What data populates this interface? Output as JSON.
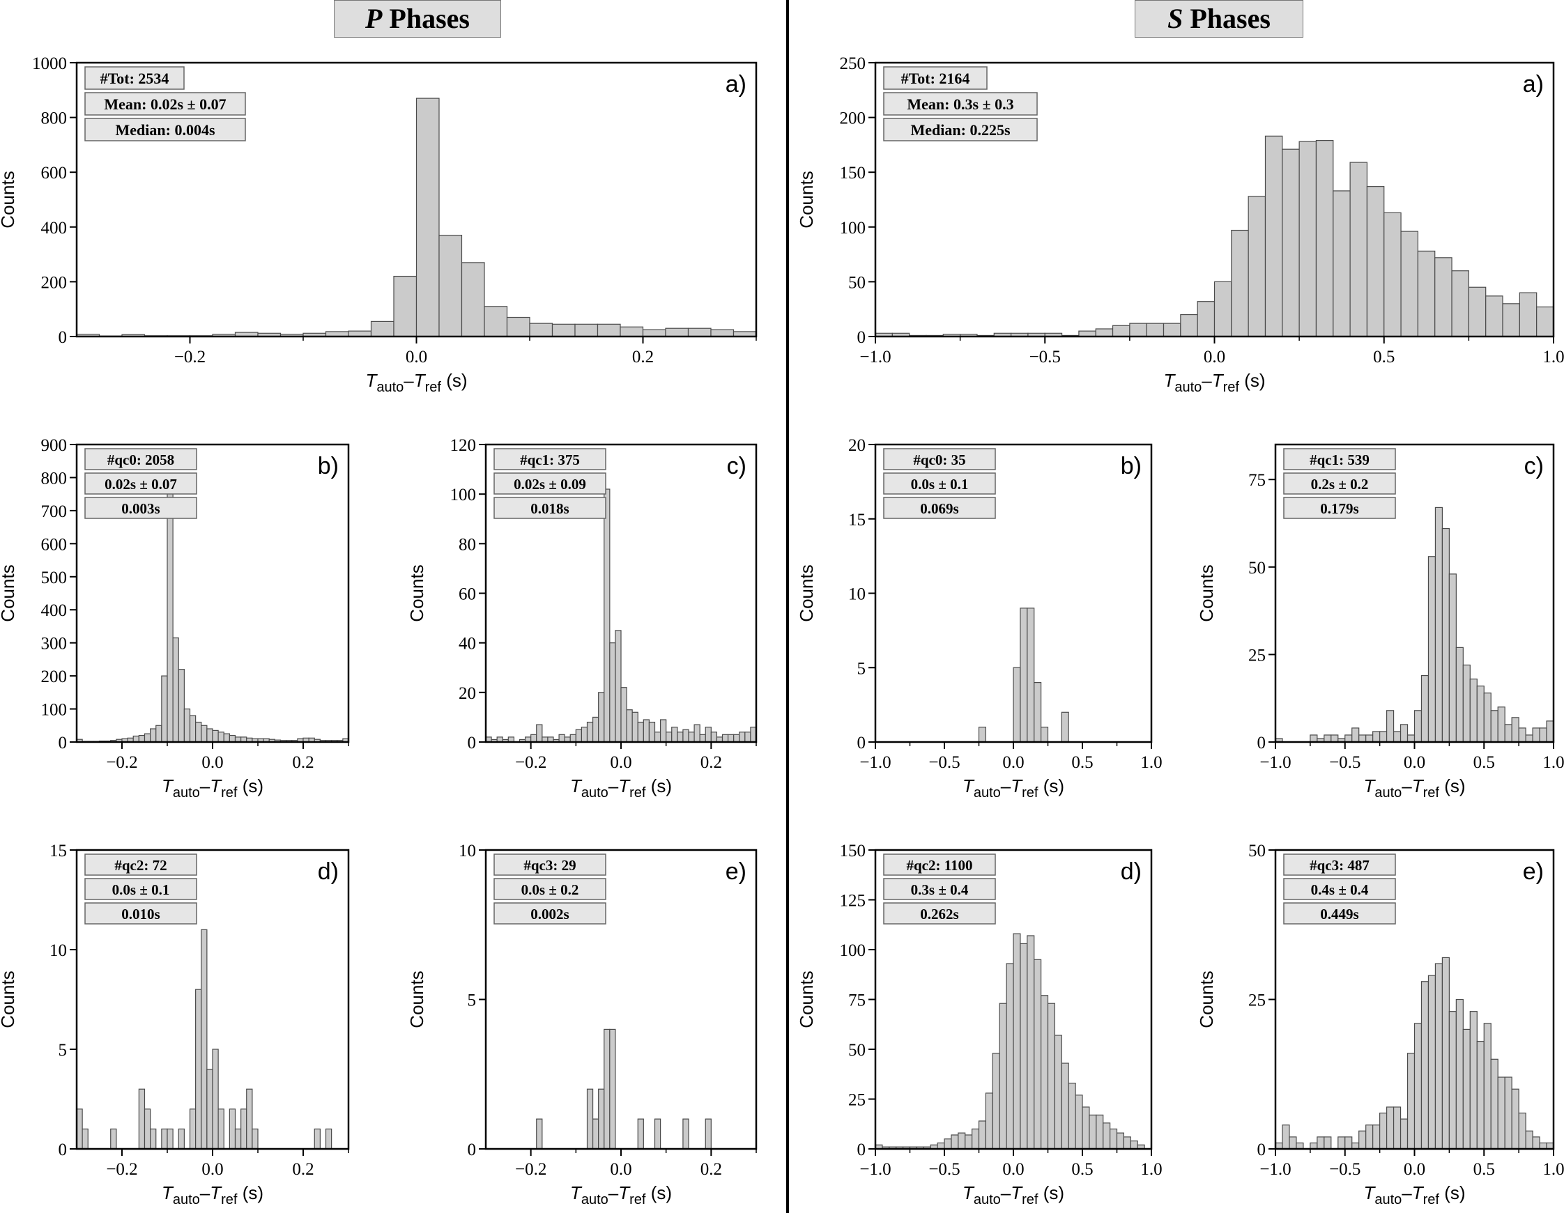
{
  "headers": {
    "p": {
      "symbol": "P",
      "word": "Phases"
    },
    "s": {
      "symbol": "S",
      "word": "Phases"
    }
  },
  "axis_text": {
    "ylabel": "Counts",
    "xlabel_t1": "T",
    "xlabel_sub1": "auto",
    "xlabel_dash": "–",
    "xlabel_t2": "T",
    "xlabel_sub2": "ref",
    "xlabel_unit": " (s)"
  },
  "chart_data": [
    {
      "type": "bar",
      "side": "P",
      "panel_label": "a)",
      "title": "",
      "xlim": [
        -0.3,
        0.3
      ],
      "ylim": [
        0,
        1000
      ],
      "xticks": [
        -0.2,
        0,
        0.2
      ],
      "xtick_labels": [
        "−0.2",
        "0.0",
        "0.2"
      ],
      "yticks": [
        0,
        200,
        400,
        600,
        800,
        1000
      ],
      "stats": [
        "#Tot: 2534",
        "Mean: 0.02s ± 0.07",
        "Median: 0.004s"
      ],
      "bin_start": -0.3,
      "bin_width": 0.02,
      "values": [
        8,
        2,
        7,
        3,
        3,
        3,
        8,
        15,
        12,
        8,
        12,
        18,
        20,
        55,
        220,
        870,
        370,
        270,
        110,
        70,
        48,
        45,
        45,
        45,
        35,
        25,
        30,
        30,
        25,
        18
      ]
    },
    {
      "type": "bar",
      "side": "P",
      "panel_label": "b)",
      "title": "",
      "xlim": [
        -0.3,
        0.3
      ],
      "ylim": [
        0,
        900
      ],
      "xticks": [
        -0.2,
        0,
        0.2
      ],
      "xtick_labels": [
        "−0.2",
        "0.0",
        "0.2"
      ],
      "yticks": [
        0,
        100,
        200,
        300,
        400,
        500,
        600,
        700,
        800,
        900
      ],
      "stats": [
        "#qc0: 2058",
        "0.02s ± 0.07",
        "0.003s"
      ],
      "bin_start": -0.3,
      "bin_width": 0.0125,
      "values": [
        8,
        2,
        2,
        2,
        3,
        3,
        5,
        8,
        10,
        12,
        18,
        20,
        25,
        40,
        50,
        200,
        760,
        315,
        220,
        100,
        80,
        60,
        50,
        40,
        35,
        30,
        25,
        20,
        15,
        15,
        12,
        10,
        10,
        10,
        8,
        6,
        5,
        5,
        5,
        10,
        12,
        12,
        8,
        5,
        5,
        5,
        5,
        10
      ]
    },
    {
      "type": "bar",
      "side": "P",
      "panel_label": "c)",
      "title": "",
      "xlim": [
        -0.3,
        0.3
      ],
      "ylim": [
        0,
        120
      ],
      "xticks": [
        -0.2,
        0,
        0.2
      ],
      "xtick_labels": [
        "−0.2",
        "0.0",
        "0.2"
      ],
      "yticks": [
        0,
        20,
        40,
        60,
        80,
        100,
        120
      ],
      "stats": [
        "#qc1: 375",
        "0.02s ± 0.09",
        "0.018s"
      ],
      "bin_start": -0.3,
      "bin_width": 0.0125,
      "values": [
        2,
        1,
        2,
        1,
        2,
        0,
        1,
        2,
        3,
        7,
        2,
        2,
        1,
        3,
        2,
        3,
        5,
        6,
        8,
        10,
        20,
        102,
        40,
        45,
        22,
        13,
        12,
        8,
        9,
        8,
        4,
        9,
        4,
        6,
        4,
        5,
        4,
        7,
        3,
        6,
        4,
        2,
        3,
        3,
        3,
        4,
        4,
        6
      ]
    },
    {
      "type": "bar",
      "side": "P",
      "panel_label": "d)",
      "title": "",
      "xlim": [
        -0.3,
        0.3
      ],
      "ylim": [
        0,
        15
      ],
      "xticks": [
        -0.2,
        0,
        0.2
      ],
      "xtick_labels": [
        "−0.2",
        "0.0",
        "0.2"
      ],
      "yticks": [
        0,
        5,
        10,
        15
      ],
      "stats": [
        "#qc2: 72",
        "0.0s ± 0.1",
        "0.010s"
      ],
      "bin_start": -0.3,
      "bin_width": 0.0125,
      "values": [
        2,
        1,
        0,
        0,
        0,
        0,
        1,
        0,
        0,
        0,
        0,
        3,
        2,
        1,
        0,
        1,
        1,
        0,
        1,
        0,
        2,
        8,
        11,
        4,
        5,
        2,
        0,
        2,
        1,
        2,
        3,
        1,
        0,
        0,
        0,
        0,
        0,
        0,
        0,
        0,
        0,
        0,
        1,
        0,
        1,
        0,
        0,
        0
      ]
    },
    {
      "type": "bar",
      "side": "P",
      "panel_label": "e)",
      "title": "",
      "xlim": [
        -0.3,
        0.3
      ],
      "ylim": [
        0,
        10
      ],
      "xticks": [
        -0.2,
        0,
        0.2
      ],
      "xtick_labels": [
        "−0.2",
        "0.0",
        "0.2"
      ],
      "yticks": [
        0,
        5,
        10
      ],
      "stats": [
        "#qc3: 29",
        "0.0s ± 0.2",
        "0.002s"
      ],
      "bin_start": -0.3,
      "bin_width": 0.0125,
      "values": [
        0,
        0,
        0,
        0,
        0,
        0,
        0,
        0,
        0,
        1,
        0,
        0,
        0,
        0,
        0,
        0,
        0,
        0,
        2,
        1,
        2,
        4,
        4,
        0,
        0,
        0,
        0,
        1,
        0,
        0,
        1,
        0,
        0,
        0,
        0,
        1,
        0,
        0,
        0,
        1,
        0,
        0,
        0,
        0,
        0,
        0,
        0,
        0
      ]
    },
    {
      "type": "bar",
      "side": "S",
      "panel_label": "a)",
      "title": "",
      "xlim": [
        -1,
        1
      ],
      "ylim": [
        0,
        250
      ],
      "xticks": [
        -1,
        -0.5,
        0,
        0.5,
        1
      ],
      "xtick_labels": [
        "−1.0",
        "−0.5",
        "0.0",
        "0.5",
        "1.0"
      ],
      "yticks": [
        0,
        50,
        100,
        150,
        200,
        250
      ],
      "stats": [
        "#Tot: 2164",
        "Mean: 0.3s ± 0.3",
        "Median: 0.225s"
      ],
      "bin_start": -1,
      "bin_width": 0.05,
      "values": [
        3,
        3,
        1,
        1,
        2,
        2,
        1,
        3,
        3,
        3,
        3,
        1,
        5,
        7,
        10,
        12,
        12,
        12,
        20,
        32,
        50,
        97,
        128,
        183,
        171,
        178,
        179,
        133,
        159,
        137,
        113,
        96,
        78,
        72,
        60,
        45,
        37,
        30,
        40,
        27,
        20,
        16,
        16
      ]
    },
    {
      "type": "bar",
      "side": "S",
      "panel_label": "b)",
      "title": "",
      "xlim": [
        -1,
        1
      ],
      "ylim": [
        0,
        20
      ],
      "xticks": [
        -1,
        -0.5,
        0,
        0.5,
        1
      ],
      "xtick_labels": [
        "−1.0",
        "−0.5",
        "0.0",
        "0.5",
        "1.0"
      ],
      "yticks": [
        0,
        5,
        10,
        15,
        20
      ],
      "stats": [
        "#qc0: 35",
        "0.0s ± 0.1",
        "0.069s"
      ],
      "bin_start": -1,
      "bin_width": 0.05,
      "values": [
        0,
        0,
        0,
        0,
        0,
        0,
        0,
        0,
        0,
        0,
        0,
        0,
        0,
        0,
        0,
        1,
        0,
        0,
        0,
        0,
        5,
        9,
        9,
        4,
        1,
        0,
        0,
        2,
        0,
        0,
        0,
        0,
        0,
        0,
        0,
        0,
        0,
        0,
        0,
        0
      ]
    },
    {
      "type": "bar",
      "side": "S",
      "panel_label": "c)",
      "title": "",
      "xlim": [
        -1,
        1
      ],
      "ylim": [
        0,
        85
      ],
      "xticks": [
        -1,
        -0.5,
        0,
        0.5,
        1
      ],
      "xtick_labels": [
        "−1.0",
        "−0.5",
        "0.0",
        "0.5",
        "1.0"
      ],
      "yticks": [
        0,
        25,
        50,
        75
      ],
      "stats": [
        "#qc1: 539",
        "0.2s ± 0.2",
        "0.179s"
      ],
      "bin_start": -1,
      "bin_width": 0.05,
      "values": [
        1,
        0,
        0,
        0,
        0,
        2,
        1,
        2,
        2,
        1,
        2,
        4,
        2,
        2,
        3,
        3,
        9,
        3,
        5,
        2,
        9,
        19,
        53,
        67,
        61,
        48,
        27,
        22,
        18,
        16,
        14,
        9,
        10,
        5,
        7,
        4,
        2,
        4,
        4,
        6
      ]
    },
    {
      "type": "bar",
      "side": "S",
      "panel_label": "d)",
      "title": "",
      "xlim": [
        -1,
        1
      ],
      "ylim": [
        0,
        150
      ],
      "xticks": [
        -1,
        -0.5,
        0,
        0.5,
        1
      ],
      "xtick_labels": [
        "−1.0",
        "−0.5",
        "0.0",
        "0.5",
        "1.0"
      ],
      "yticks": [
        0,
        25,
        50,
        75,
        100,
        125,
        150
      ],
      "stats": [
        "#qc2: 1100",
        "0.3s ± 0.4",
        "0.262s"
      ],
      "bin_start": -1,
      "bin_width": 0.05,
      "values": [
        2,
        1,
        1,
        1,
        1,
        1,
        1,
        1,
        2,
        3,
        5,
        7,
        8,
        7,
        10,
        14,
        28,
        48,
        73,
        93,
        108,
        103,
        107,
        95,
        77,
        73,
        57,
        43,
        33,
        27,
        21,
        17,
        17,
        13,
        10,
        8,
        6,
        4,
        2,
        0
      ]
    },
    {
      "type": "bar",
      "side": "S",
      "panel_label": "e)",
      "title": "",
      "xlim": [
        -1,
        1
      ],
      "ylim": [
        0,
        50
      ],
      "xticks": [
        -1,
        -0.5,
        0,
        0.5,
        1
      ],
      "xtick_labels": [
        "−1.0",
        "−0.5",
        "0.0",
        "0.5",
        "1.0"
      ],
      "yticks": [
        0,
        25,
        50
      ],
      "stats": [
        "#qc3: 487",
        "0.4s ± 0.4",
        "0.449s"
      ],
      "bin_start": -1,
      "bin_width": 0.05,
      "values": [
        1,
        4,
        2,
        1,
        0,
        1,
        2,
        2,
        0,
        2,
        2,
        1,
        3,
        4,
        4,
        6,
        7,
        7,
        5,
        16,
        21,
        28,
        29,
        31,
        32,
        23,
        25,
        20,
        23,
        18,
        21,
        15,
        12,
        12,
        10,
        6,
        3,
        2,
        1,
        1
      ]
    }
  ]
}
